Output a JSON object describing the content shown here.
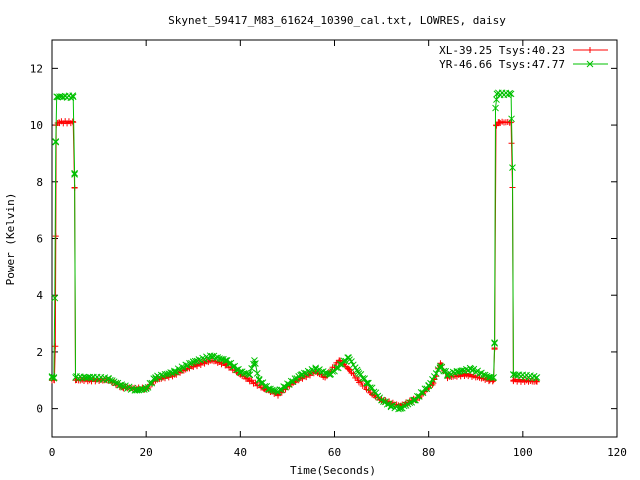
{
  "chart_data": {
    "type": "line",
    "title": "Skynet_59417_M83_61624_10390_cal.txt, LOWRES, daisy",
    "xlabel": "Time(Seconds)",
    "ylabel": "Power (Kelvin)",
    "xlim": [
      0,
      120
    ],
    "ylim": [
      -1,
      13
    ],
    "xticks": [
      0,
      20,
      40,
      60,
      80,
      100,
      120
    ],
    "yticks": [
      0,
      2,
      4,
      6,
      8,
      10,
      12
    ],
    "legend_position": "top-right",
    "grid": false,
    "series": [
      {
        "name": "XL-39.25 Tsys:40.23",
        "color": "#ff0000",
        "marker": "plus",
        "points": [
          [
            0,
            1.0
          ],
          [
            0.5,
            1.0
          ],
          [
            0.7,
            2.2
          ],
          [
            0.9,
            10.0
          ],
          [
            1.5,
            10.1
          ],
          [
            4.5,
            10.1
          ],
          [
            4.8,
            7.8
          ],
          [
            5.0,
            1.0
          ],
          [
            8,
            1.0
          ],
          [
            12,
            1.0
          ],
          [
            15,
            0.75
          ],
          [
            20,
            0.7
          ],
          [
            22,
            1.0
          ],
          [
            26,
            1.2
          ],
          [
            30,
            1.5
          ],
          [
            34,
            1.7
          ],
          [
            37,
            1.55
          ],
          [
            40,
            1.2
          ],
          [
            42,
            1.0
          ],
          [
            45,
            0.7
          ],
          [
            48,
            0.5
          ],
          [
            52,
            1.0
          ],
          [
            56,
            1.3
          ],
          [
            58,
            1.1
          ],
          [
            61,
            1.7
          ],
          [
            63,
            1.4
          ],
          [
            65,
            1.0
          ],
          [
            68,
            0.5
          ],
          [
            70,
            0.3
          ],
          [
            74,
            0.1
          ],
          [
            78,
            0.4
          ],
          [
            81,
            0.9
          ],
          [
            82.5,
            1.6
          ],
          [
            84,
            1.1
          ],
          [
            88,
            1.2
          ],
          [
            93,
            1.0
          ],
          [
            93.8,
            1.0
          ],
          [
            94.0,
            2.1
          ],
          [
            94.3,
            10.0
          ],
          [
            95,
            10.1
          ],
          [
            97.5,
            10.1
          ],
          [
            97.8,
            7.8
          ],
          [
            98.0,
            1.0
          ],
          [
            103,
            0.95
          ]
        ]
      },
      {
        "name": "YR-46.66 Tsys:47.77",
        "color": "#00c000",
        "marker": "cross",
        "points": [
          [
            0,
            1.1
          ],
          [
            0.4,
            1.1
          ],
          [
            0.6,
            3.9
          ],
          [
            0.8,
            9.4
          ],
          [
            1.0,
            11.0
          ],
          [
            4.5,
            11.0
          ],
          [
            4.8,
            8.3
          ],
          [
            5.0,
            1.1
          ],
          [
            8,
            1.1
          ],
          [
            12,
            1.05
          ],
          [
            15,
            0.8
          ],
          [
            18,
            0.65
          ],
          [
            20,
            0.7
          ],
          [
            22,
            1.1
          ],
          [
            26,
            1.3
          ],
          [
            30,
            1.65
          ],
          [
            34,
            1.85
          ],
          [
            37,
            1.7
          ],
          [
            40,
            1.3
          ],
          [
            42,
            1.2
          ],
          [
            43,
            1.7
          ],
          [
            44,
            1.0
          ],
          [
            46,
            0.7
          ],
          [
            48,
            0.6
          ],
          [
            53,
            1.2
          ],
          [
            56,
            1.4
          ],
          [
            59,
            1.2
          ],
          [
            63,
            1.8
          ],
          [
            65,
            1.3
          ],
          [
            67,
            0.9
          ],
          [
            70,
            0.3
          ],
          [
            72,
            0.1
          ],
          [
            74,
            0.0
          ],
          [
            77,
            0.3
          ],
          [
            80,
            0.8
          ],
          [
            82.5,
            1.5
          ],
          [
            84,
            1.2
          ],
          [
            86,
            1.3
          ],
          [
            89,
            1.4
          ],
          [
            93,
            1.1
          ],
          [
            93.8,
            1.1
          ],
          [
            94.0,
            2.3
          ],
          [
            94.2,
            10.6
          ],
          [
            94.5,
            11.1
          ],
          [
            97.5,
            11.1
          ],
          [
            97.8,
            8.5
          ],
          [
            98.0,
            1.2
          ],
          [
            103,
            1.1
          ]
        ]
      }
    ]
  }
}
